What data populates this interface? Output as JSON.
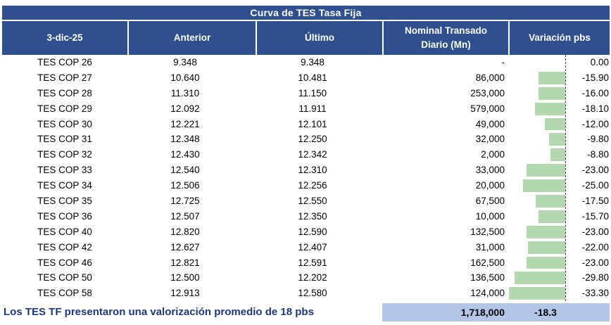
{
  "page": {
    "title": "Curva de TES Tasa Fija"
  },
  "chart_data": {
    "type": "table",
    "title": "Curva de TES Tasa Fija",
    "columns": [
      "3-dic-25",
      "Anterior",
      "Último",
      "Nominal Transado Diario (Mn)",
      "Variación pbs"
    ],
    "rows": [
      {
        "tenor": "TES COP 26",
        "anterior": "9.348",
        "ultimo": "9.348",
        "nominal": "-",
        "variacion": "0.00",
        "variacion_num": 0.0
      },
      {
        "tenor": "TES COP 27",
        "anterior": "10.640",
        "ultimo": "10.481",
        "nominal": "86,000",
        "variacion": "-15.90",
        "variacion_num": -15.9
      },
      {
        "tenor": "TES COP 28",
        "anterior": "11.310",
        "ultimo": "11.150",
        "nominal": "253,000",
        "variacion": "-16.00",
        "variacion_num": -16.0
      },
      {
        "tenor": "TES COP 29",
        "anterior": "12.092",
        "ultimo": "11.911",
        "nominal": "579,000",
        "variacion": "-18.10",
        "variacion_num": -18.1
      },
      {
        "tenor": "TES COP 30",
        "anterior": "12.221",
        "ultimo": "12.101",
        "nominal": "49,000",
        "variacion": "-12.00",
        "variacion_num": -12.0
      },
      {
        "tenor": "TES COP 31",
        "anterior": "12.348",
        "ultimo": "12.250",
        "nominal": "32,000",
        "variacion": "-9.80",
        "variacion_num": -9.8
      },
      {
        "tenor": "TES COP 32",
        "anterior": "12.430",
        "ultimo": "12.342",
        "nominal": "2,000",
        "variacion": "-8.80",
        "variacion_num": -8.8
      },
      {
        "tenor": "TES COP 33",
        "anterior": "12.540",
        "ultimo": "12.310",
        "nominal": "33,000",
        "variacion": "-23.00",
        "variacion_num": -23.0
      },
      {
        "tenor": "TES COP 34",
        "anterior": "12.506",
        "ultimo": "12.256",
        "nominal": "20,000",
        "variacion": "-25.00",
        "variacion_num": -25.0
      },
      {
        "tenor": "TES COP 35",
        "anterior": "12.725",
        "ultimo": "12.550",
        "nominal": "67,500",
        "variacion": "-17.50",
        "variacion_num": -17.5
      },
      {
        "tenor": "TES COP 36",
        "anterior": "12.507",
        "ultimo": "12.350",
        "nominal": "10,000",
        "variacion": "-15.70",
        "variacion_num": -15.7
      },
      {
        "tenor": "TES COP 40",
        "anterior": "12.820",
        "ultimo": "12.590",
        "nominal": "132,500",
        "variacion": "-23.00",
        "variacion_num": -23.0
      },
      {
        "tenor": "TES COP 42",
        "anterior": "12.627",
        "ultimo": "12.407",
        "nominal": "31,000",
        "variacion": "-22.00",
        "variacion_num": -22.0
      },
      {
        "tenor": "TES COP 46",
        "anterior": "12.821",
        "ultimo": "12.591",
        "nominal": "162,500",
        "variacion": "-23.00",
        "variacion_num": -23.0
      },
      {
        "tenor": "TES COP 50",
        "anterior": "12.500",
        "ultimo": "12.202",
        "nominal": "136,500",
        "variacion": "-29.80",
        "variacion_num": -29.8
      },
      {
        "tenor": "TES COP 58",
        "anterior": "12.913",
        "ultimo": "12.580",
        "nominal": "124,000",
        "variacion": "-33.30",
        "variacion_num": -33.3
      }
    ],
    "totals": {
      "nominal_total": "1,718,000",
      "variacion_promedio": "-18.3"
    },
    "data_bars": {
      "column": "Variación pbs",
      "color": "#b4d8b0",
      "zero_axis": "dashed",
      "direction": "negative-bars-extend-left"
    },
    "layout_hints": {
      "legend": "none",
      "grid": "off"
    }
  },
  "footer_note": "Los TES TF presentaron una valorización promedio de 18 pbs",
  "colors": {
    "header_bg": "#2f4f8e",
    "header_text": "#ffffff",
    "body_text": "#000000",
    "bar_fill": "#b4d8b0",
    "footer_band_bg": "#b4c6e7",
    "footer_note_text": "#1b3a78"
  }
}
